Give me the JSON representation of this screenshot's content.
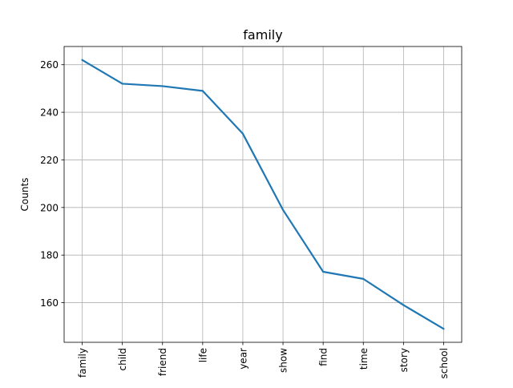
{
  "chart_data": {
    "type": "line",
    "title": "family",
    "xlabel": "",
    "ylabel": "Counts",
    "categories": [
      "family",
      "child",
      "friend",
      "life",
      "year",
      "show",
      "find",
      "time",
      "story",
      "school"
    ],
    "series": [
      {
        "values": [
          262,
          252,
          251,
          249,
          231,
          199,
          173,
          170,
          159,
          149
        ],
        "color": "#1f77b4"
      }
    ],
    "ylim": [
      143.35,
      267.65
    ],
    "yticks": [
      160,
      180,
      200,
      220,
      240,
      260
    ],
    "grid": true,
    "x_tick_rotation": "vertical"
  }
}
